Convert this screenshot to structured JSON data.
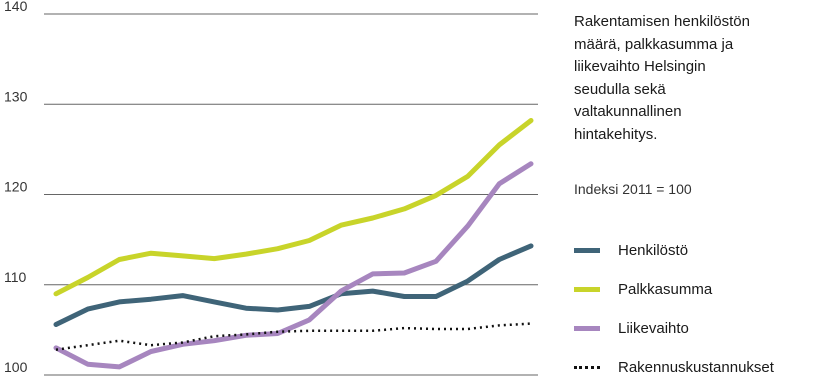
{
  "chart_data": {
    "type": "line",
    "title": "Rakentamisen henkilöstön määrä, palkkasumma ja liikevaihto  Helsingin seudulla sekä valtakunnallinen hintakehitys.",
    "subtitle": "Indeksi 2011 = 100",
    "xlabel": "",
    "ylabel": "",
    "ylim": [
      100,
      140
    ],
    "yticks": [
      100,
      110,
      120,
      130,
      140
    ],
    "grid": true,
    "legend_position": "right",
    "series": [
      {
        "name": "Henkilöstö",
        "color": "#3f6478",
        "style": "solid",
        "values": [
          105.6,
          107.3,
          108.1,
          108.4,
          108.8,
          108.1,
          107.4,
          107.2,
          107.6,
          109.0,
          109.3,
          108.7,
          108.7,
          110.4,
          112.8,
          114.3
        ]
      },
      {
        "name": "Palkkasumma",
        "color": "#c8d42a",
        "style": "solid",
        "values": [
          109.0,
          110.8,
          112.8,
          113.5,
          113.2,
          112.9,
          113.4,
          114.0,
          114.9,
          116.6,
          117.4,
          118.4,
          119.9,
          122.0,
          125.5,
          128.2
        ]
      },
      {
        "name": "Liikevaihto",
        "color": "#a786bf",
        "style": "solid",
        "values": [
          103.0,
          101.2,
          100.9,
          102.6,
          103.4,
          103.8,
          104.4,
          104.6,
          106.1,
          109.3,
          111.2,
          111.3,
          112.6,
          116.5,
          121.2,
          123.4
        ]
      },
      {
        "name": "Rakennuskustannukset",
        "color": "#111111",
        "style": "dotted",
        "values": [
          102.8,
          103.3,
          103.8,
          103.3,
          103.6,
          104.3,
          104.5,
          104.8,
          104.9,
          104.9,
          104.9,
          105.2,
          105.1,
          105.1,
          105.5,
          105.7
        ]
      }
    ]
  }
}
